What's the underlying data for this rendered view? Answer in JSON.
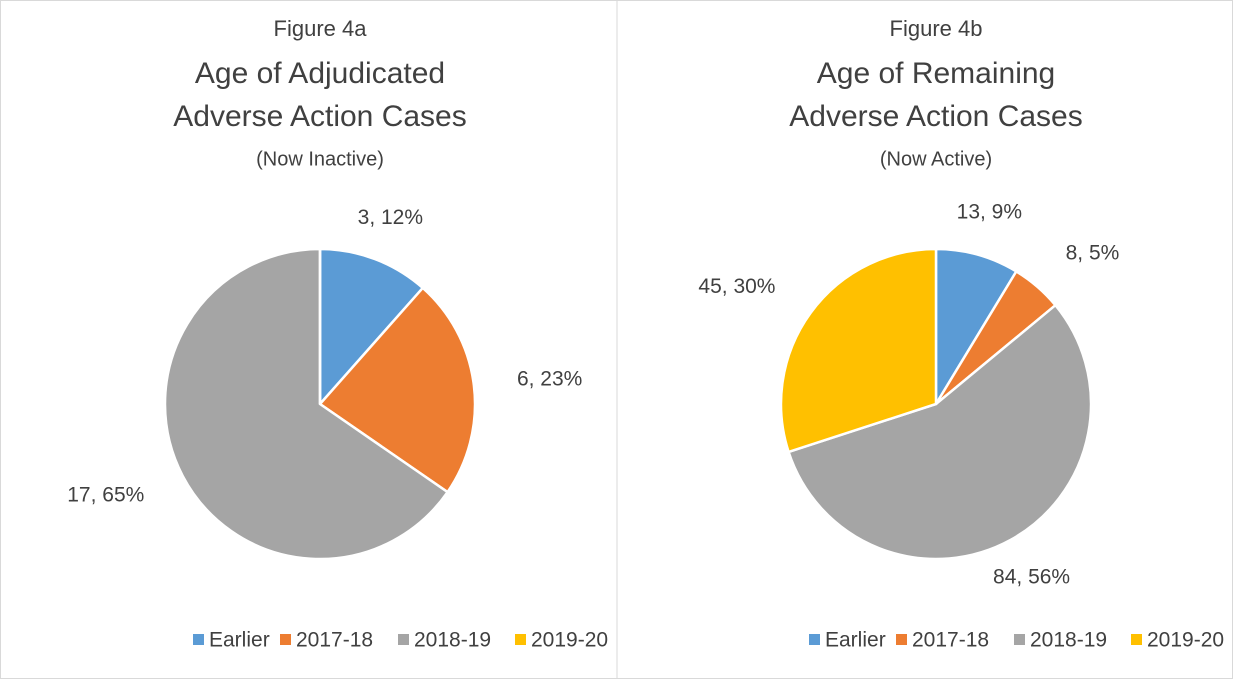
{
  "chart_data": [
    {
      "type": "pie",
      "title_lines": [
        "Figure 4a",
        "Age of Adjudicated",
        "Adverse Action Cases",
        "(Now Inactive)"
      ],
      "categories": [
        "Earlier",
        "2017-18",
        "2018-19",
        "2019-20"
      ],
      "values": [
        3,
        6,
        17,
        0
      ],
      "value_labels": [
        "3, 12%",
        "6, 23%",
        "17, 65%",
        null
      ],
      "colors": [
        "#5b9bd5",
        "#ed7d31",
        "#a5a5a5",
        "#ffc000"
      ],
      "legend": "bottom"
    },
    {
      "type": "pie",
      "title_lines": [
        "Figure 4b",
        "Age of Remaining",
        "Adverse Action Cases",
        "(Now Active)"
      ],
      "categories": [
        "Earlier",
        "2017-18",
        "2018-19",
        "2019-20"
      ],
      "values": [
        13,
        8,
        84,
        45
      ],
      "value_labels": [
        "13, 9%",
        "8, 5%",
        "84, 56%",
        "45, 30%"
      ],
      "colors": [
        "#5b9bd5",
        "#ed7d31",
        "#a5a5a5",
        "#ffc000"
      ],
      "legend": "bottom"
    }
  ]
}
